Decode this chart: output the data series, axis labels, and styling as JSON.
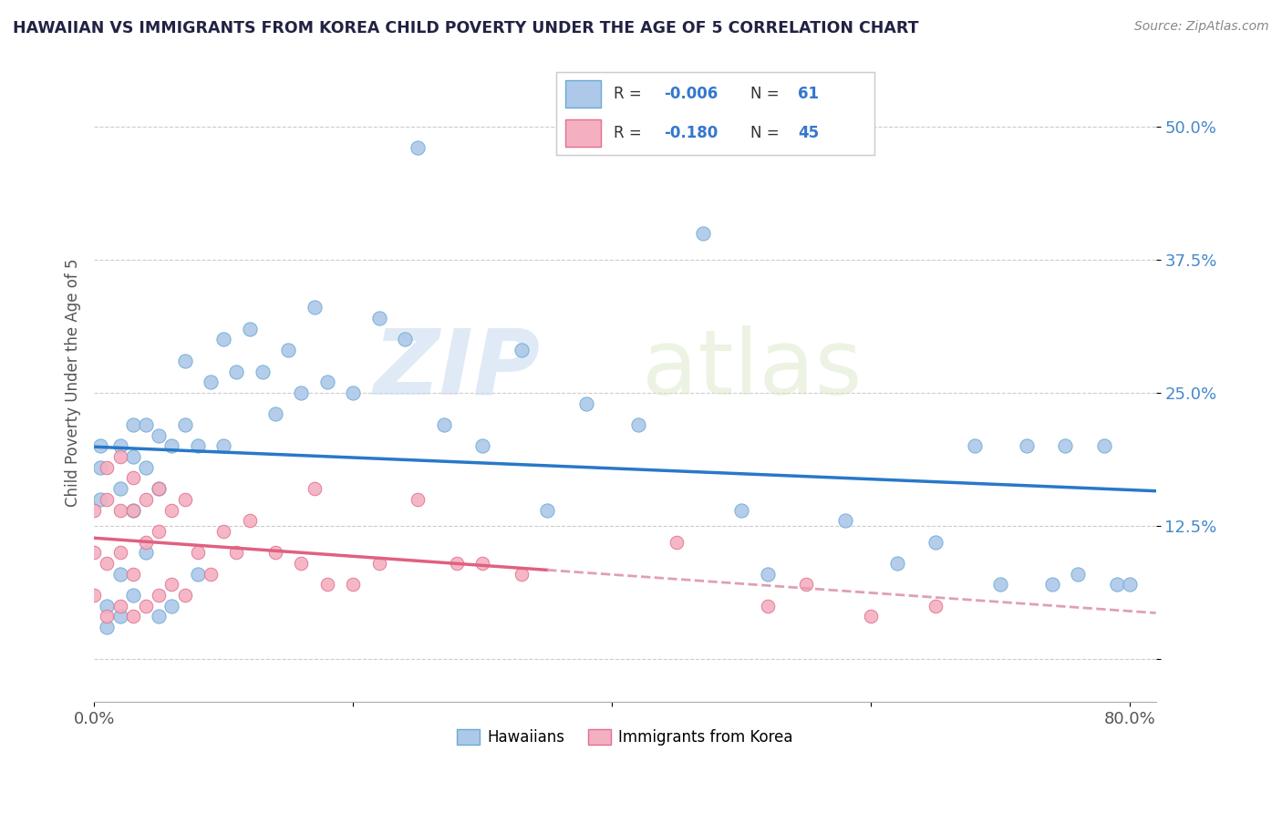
{
  "title": "HAWAIIAN VS IMMIGRANTS FROM KOREA CHILD POVERTY UNDER THE AGE OF 5 CORRELATION CHART",
  "source": "Source: ZipAtlas.com",
  "ylabel": "Child Poverty Under the Age of 5",
  "xlim": [
    0.0,
    0.82
  ],
  "ylim": [
    -0.04,
    0.56
  ],
  "yticks": [
    0.0,
    0.125,
    0.25,
    0.375,
    0.5
  ],
  "ytick_labels": [
    "",
    "12.5%",
    "25.0%",
    "37.5%",
    "50.0%"
  ],
  "xtick_positions": [
    0.0,
    0.2,
    0.4,
    0.6,
    0.8
  ],
  "xtick_labels": [
    "0.0%",
    "",
    "",
    "",
    "80.0%"
  ],
  "R_hawaiian": -0.006,
  "N_hawaiian": 61,
  "R_korean": -0.18,
  "N_korean": 45,
  "hawaiian_color": "#adc8e8",
  "hawaiian_edge": "#6aaad4",
  "korean_color": "#f4afc0",
  "korean_edge": "#e07090",
  "trendline_hawaiian_color": "#2878c8",
  "trendline_korean_solid_color": "#e06080",
  "trendline_korean_dash_color": "#e0a0b0",
  "hawaiian_scatter_x": [
    0.005,
    0.005,
    0.005,
    0.01,
    0.01,
    0.02,
    0.02,
    0.02,
    0.02,
    0.03,
    0.03,
    0.03,
    0.03,
    0.04,
    0.04,
    0.04,
    0.05,
    0.05,
    0.05,
    0.06,
    0.06,
    0.07,
    0.07,
    0.08,
    0.08,
    0.09,
    0.1,
    0.1,
    0.11,
    0.12,
    0.13,
    0.14,
    0.15,
    0.16,
    0.17,
    0.18,
    0.2,
    0.22,
    0.24,
    0.25,
    0.27,
    0.3,
    0.33,
    0.35,
    0.38,
    0.42,
    0.47,
    0.5,
    0.52,
    0.58,
    0.62,
    0.65,
    0.68,
    0.7,
    0.72,
    0.74,
    0.75,
    0.76,
    0.78,
    0.79,
    0.8
  ],
  "hawaiian_scatter_y": [
    0.2,
    0.18,
    0.15,
    0.05,
    0.03,
    0.2,
    0.16,
    0.08,
    0.04,
    0.22,
    0.19,
    0.14,
    0.06,
    0.22,
    0.18,
    0.1,
    0.21,
    0.16,
    0.04,
    0.2,
    0.05,
    0.28,
    0.22,
    0.2,
    0.08,
    0.26,
    0.3,
    0.2,
    0.27,
    0.31,
    0.27,
    0.23,
    0.29,
    0.25,
    0.33,
    0.26,
    0.25,
    0.32,
    0.3,
    0.48,
    0.22,
    0.2,
    0.29,
    0.14,
    0.24,
    0.22,
    0.4,
    0.14,
    0.08,
    0.13,
    0.09,
    0.11,
    0.2,
    0.07,
    0.2,
    0.07,
    0.2,
    0.08,
    0.2,
    0.07,
    0.07
  ],
  "korean_scatter_x": [
    0.0,
    0.0,
    0.0,
    0.01,
    0.01,
    0.01,
    0.01,
    0.02,
    0.02,
    0.02,
    0.02,
    0.03,
    0.03,
    0.03,
    0.03,
    0.04,
    0.04,
    0.04,
    0.05,
    0.05,
    0.05,
    0.06,
    0.06,
    0.07,
    0.07,
    0.08,
    0.09,
    0.1,
    0.11,
    0.12,
    0.14,
    0.16,
    0.17,
    0.18,
    0.2,
    0.22,
    0.25,
    0.28,
    0.3,
    0.33,
    0.45,
    0.52,
    0.55,
    0.6,
    0.65
  ],
  "korean_scatter_y": [
    0.14,
    0.1,
    0.06,
    0.18,
    0.15,
    0.09,
    0.04,
    0.19,
    0.14,
    0.1,
    0.05,
    0.17,
    0.14,
    0.08,
    0.04,
    0.15,
    0.11,
    0.05,
    0.16,
    0.12,
    0.06,
    0.14,
    0.07,
    0.15,
    0.06,
    0.1,
    0.08,
    0.12,
    0.1,
    0.13,
    0.1,
    0.09,
    0.16,
    0.07,
    0.07,
    0.09,
    0.15,
    0.09,
    0.09,
    0.08,
    0.11,
    0.05,
    0.07,
    0.04,
    0.05
  ]
}
